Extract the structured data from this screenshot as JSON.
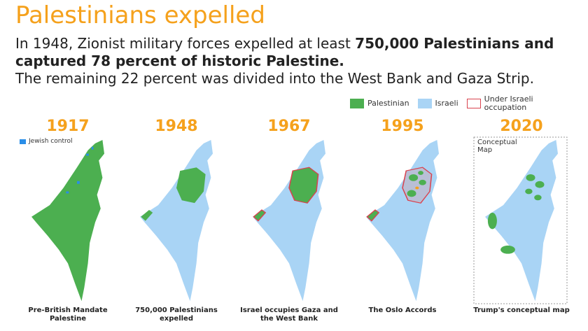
{
  "title": "Palestinians expelled",
  "intro": [
    "In 1948, Zionist military forces expelled at least ",
    "750,000 Palestinians and captured 78 percent of historic Palestine.",
    "The remaining 22 percent was divided into the West Bank and Gaza Strip."
  ],
  "legend": [
    {
      "label": "Palestinian",
      "color": "#4caf50"
    },
    {
      "label": "Israeli",
      "color": "#a9d4f5"
    },
    {
      "label": "Under Israeli occupation",
      "color": "#d9434f"
    }
  ],
  "maps": [
    {
      "year": "1917",
      "caption": "Pre-British Mandate Palestine",
      "note": "Jewish control"
    },
    {
      "year": "1948",
      "caption": "750,000 Palestinians expelled"
    },
    {
      "year": "1967",
      "caption": "Israel occupies Gaza and the West Bank"
    },
    {
      "year": "1995",
      "caption": "The Oslo Accords"
    },
    {
      "year": "2020",
      "caption": "Trump's conceptual map",
      "note": "Conceptual Map"
    }
  ]
}
